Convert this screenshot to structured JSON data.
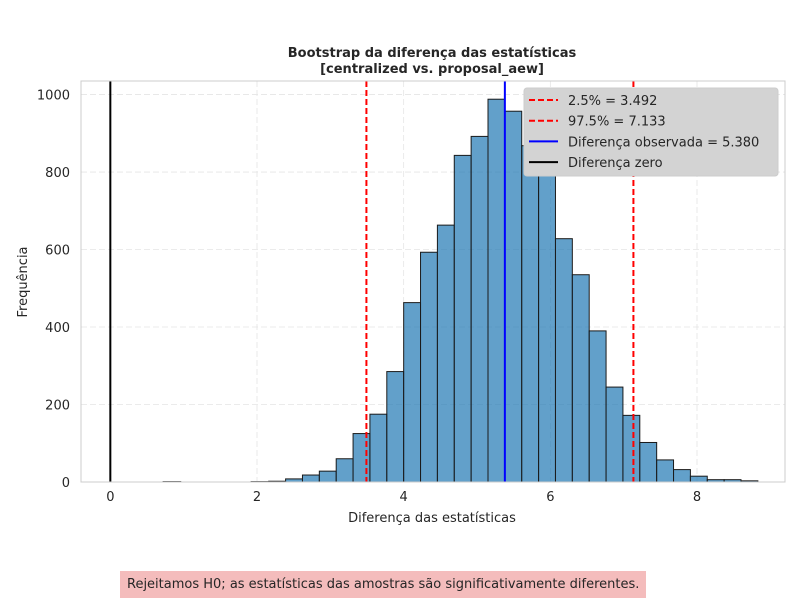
{
  "chart_data": {
    "type": "bar",
    "title_lines": [
      "Bootstrap da diferença das estatísticas",
      "[centralized vs. proposal_aew]"
    ],
    "xlabel": "Diferença das estatísticas",
    "ylabel": "Frequência",
    "xlim": [
      -0.4,
      9.2
    ],
    "ylim": [
      0,
      1035
    ],
    "xticks": [
      0,
      2,
      4,
      6,
      8
    ],
    "yticks": [
      0,
      200,
      400,
      600,
      800,
      1000
    ],
    "grid": true,
    "bar_color": "#1f77b4",
    "bins": [
      {
        "x0": 0.72,
        "x1": 0.96,
        "count": 1
      },
      {
        "x0": 1.92,
        "x1": 2.16,
        "count": 1
      },
      {
        "x0": 2.16,
        "x1": 2.39,
        "count": 2
      },
      {
        "x0": 2.39,
        "x1": 2.62,
        "count": 8
      },
      {
        "x0": 2.62,
        "x1": 2.85,
        "count": 18
      },
      {
        "x0": 2.85,
        "x1": 3.08,
        "count": 28
      },
      {
        "x0": 3.08,
        "x1": 3.31,
        "count": 60
      },
      {
        "x0": 3.31,
        "x1": 3.54,
        "count": 125
      },
      {
        "x0": 3.54,
        "x1": 3.77,
        "count": 175
      },
      {
        "x0": 3.77,
        "x1": 4.0,
        "count": 285
      },
      {
        "x0": 4.0,
        "x1": 4.23,
        "count": 463
      },
      {
        "x0": 4.23,
        "x1": 4.46,
        "count": 593
      },
      {
        "x0": 4.46,
        "x1": 4.69,
        "count": 663
      },
      {
        "x0": 4.69,
        "x1": 4.92,
        "count": 843
      },
      {
        "x0": 4.92,
        "x1": 5.15,
        "count": 892
      },
      {
        "x0": 5.15,
        "x1": 5.38,
        "count": 988
      },
      {
        "x0": 5.38,
        "x1": 5.61,
        "count": 957
      },
      {
        "x0": 5.61,
        "x1": 5.84,
        "count": 868
      },
      {
        "x0": 5.84,
        "x1": 6.07,
        "count": 800
      },
      {
        "x0": 6.07,
        "x1": 6.3,
        "count": 628
      },
      {
        "x0": 6.3,
        "x1": 6.53,
        "count": 535
      },
      {
        "x0": 6.53,
        "x1": 6.76,
        "count": 390
      },
      {
        "x0": 6.76,
        "x1": 6.99,
        "count": 245
      },
      {
        "x0": 6.99,
        "x1": 7.22,
        "count": 172
      },
      {
        "x0": 7.22,
        "x1": 7.45,
        "count": 102
      },
      {
        "x0": 7.45,
        "x1": 7.68,
        "count": 57
      },
      {
        "x0": 7.68,
        "x1": 7.91,
        "count": 32
      },
      {
        "x0": 7.91,
        "x1": 8.14,
        "count": 15
      },
      {
        "x0": 8.14,
        "x1": 8.37,
        "count": 6
      },
      {
        "x0": 8.37,
        "x1": 8.6,
        "count": 6
      },
      {
        "x0": 8.6,
        "x1": 8.83,
        "count": 3
      }
    ],
    "vlines": [
      {
        "x": 3.492,
        "label": "2.5% = 3.492",
        "color": "#ff0000",
        "style": "dashed"
      },
      {
        "x": 7.133,
        "label": "97.5% = 7.133",
        "color": "#ff0000",
        "style": "dashed"
      },
      {
        "x": 5.38,
        "label": "Diferença observada = 5.380",
        "color": "#0000ff",
        "style": "solid"
      },
      {
        "x": 0,
        "label": "Diferença zero",
        "color": "#000000",
        "style": "solid"
      }
    ],
    "legend_position": "top-right"
  },
  "conclusion": {
    "text": "Rejeitamos H0; as estatísticas das amostras são significativamente diferentes.",
    "background": "#f4bcbc"
  }
}
